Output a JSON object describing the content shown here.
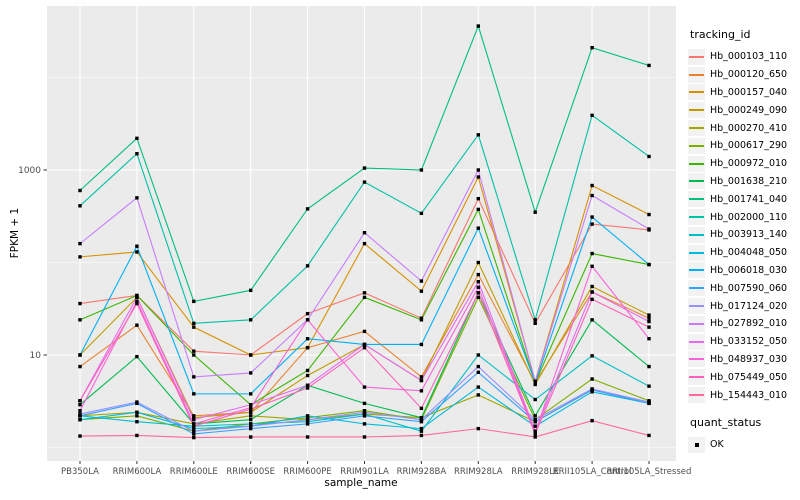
{
  "figure": {
    "background": "#FFFFFF",
    "panel_bg": "#EBEBEB",
    "grid_color": "#FFFFFF",
    "tick_label_color": "#4D4D4D"
  },
  "axes": {
    "y_label": "FPKM + 1",
    "x_label": "sample_name",
    "y_tick_labels": [
      "1000",
      "10"
    ]
  },
  "legend": {
    "tracking_title": "tracking_id",
    "quant_title": "quant_status",
    "quant_ok_label": "OK"
  },
  "chart_data": {
    "type": "line",
    "title": "",
    "xlabel": "sample_name",
    "ylabel": "FPKM + 1",
    "y_scale": "log10",
    "ylim": [
      0.7,
      56000
    ],
    "y_major_ticks": [
      10,
      1000
    ],
    "y_minor_gridlines": [
      1,
      100,
      10000
    ],
    "grid": true,
    "legend_position": "right",
    "marker": "black-square",
    "categories": [
      "PB350LA",
      "RRIM600LA",
      "RRIM600LE",
      "RRIM600SE",
      "RRIM600PE",
      "RRIM901LA",
      "RRIM928BA",
      "RRIM928LA",
      "RRIM928LE",
      "RRII105LA_Control",
      "RRII105LA_Stressed"
    ],
    "series": [
      {
        "name": "Hb_000103_110",
        "color": "#F8766D",
        "values": [
          36,
          44,
          11,
          10,
          28,
          47,
          25,
          490,
          22,
          260,
          225
        ]
      },
      {
        "name": "Hb_000120_650",
        "color": "#EA8331",
        "values": [
          7.5,
          21,
          2.2,
          2.4,
          12,
          18,
          5.8,
          74,
          5.0,
          48,
          25
        ]
      },
      {
        "name": "Hb_000157_040",
        "color": "#D89000",
        "values": [
          115,
          130,
          20,
          10,
          12,
          160,
          49,
          840,
          5.2,
          680,
          330
        ]
      },
      {
        "name": "Hb_000249_090",
        "color": "#C09B00",
        "values": [
          10,
          42,
          2.1,
          2.4,
          6.0,
          13,
          5.3,
          100,
          4.8,
          55,
          27
        ]
      },
      {
        "name": "Hb_000270_410",
        "color": "#A3A500",
        "values": [
          2.2,
          2.4,
          1.8,
          2.2,
          2.0,
          2.3,
          2.1,
          3.7,
          1.9,
          4.2,
          3.1
        ]
      },
      {
        "name": "Hb_000617_290",
        "color": "#7CAE00",
        "values": [
          2.0,
          2.2,
          1.5,
          1.8,
          2.1,
          2.5,
          2.0,
          42,
          2.0,
          5.5,
          3.2
        ]
      },
      {
        "name": "Hb_000972_010",
        "color": "#39B600",
        "values": [
          24,
          44,
          10,
          2.9,
          6.8,
          42,
          24,
          375,
          5.0,
          125,
          95
        ]
      },
      {
        "name": "Hb_001638_210",
        "color": "#00BB4E",
        "values": [
          2.9,
          9.6,
          1.8,
          2.0,
          4.7,
          3.0,
          2.1,
          47,
          2.2,
          24,
          7.5
        ]
      },
      {
        "name": "Hb_001741_040",
        "color": "#00BF7D",
        "values": [
          600,
          2200,
          38,
          50,
          380,
          1050,
          1000,
          36000,
          350,
          21000,
          13500
        ]
      },
      {
        "name": "Hb_002000_110",
        "color": "#00C1A3",
        "values": [
          410,
          1500,
          22,
          24,
          92,
          740,
          340,
          2400,
          24,
          3900,
          1400
        ]
      },
      {
        "name": "Hb_003913_140",
        "color": "#00BFC4",
        "values": [
          2.2,
          1.9,
          1.7,
          1.8,
          1.9,
          2.3,
          1.5,
          10,
          3.3,
          9.8,
          4.6
        ]
      },
      {
        "name": "Hb_004048_050",
        "color": "#00BAE0",
        "values": [
          2.0,
          2.4,
          1.6,
          1.7,
          2.2,
          1.8,
          1.6,
          4.5,
          1.7,
          4.0,
          3.0
        ]
      },
      {
        "name": "Hb_006018_030",
        "color": "#00B0F6",
        "values": [
          10,
          150,
          3.8,
          3.8,
          15,
          13,
          13,
          235,
          5.0,
          310,
          95
        ]
      },
      {
        "name": "Hb_007590_060",
        "color": "#35A2FF",
        "values": [
          2.2,
          3.0,
          1.4,
          1.6,
          1.8,
          2.2,
          1.9,
          6.5,
          1.9,
          4.2,
          3.0
        ]
      },
      {
        "name": "Hb_017124_020",
        "color": "#9590FF",
        "values": [
          2.3,
          3.1,
          1.5,
          1.7,
          2.0,
          2.4,
          2.0,
          7.5,
          2.0,
          4.3,
          3.1
        ]
      },
      {
        "name": "Hb_027892_010",
        "color": "#C77CFF",
        "values": [
          160,
          500,
          5.8,
          6.4,
          24,
          210,
          63,
          1000,
          5.2,
          530,
          230
        ]
      },
      {
        "name": "Hb_033152_050",
        "color": "#E76BF3",
        "values": [
          3.2,
          42,
          2.0,
          2.9,
          4.7,
          13,
          5.3,
          62,
          1.5,
          48,
          23
        ]
      },
      {
        "name": "Hb_048937_030",
        "color": "#FA62DB",
        "values": [
          2.5,
          38,
          1.8,
          2.7,
          24,
          4.5,
          4.1,
          54,
          1.45,
          91,
          15
        ]
      },
      {
        "name": "Hb_075449_050",
        "color": "#FF62BC",
        "values": [
          3.2,
          36,
          1.7,
          2.6,
          4.4,
          12,
          2.65,
          47,
          1.4,
          40,
          20
        ]
      },
      {
        "name": "Hb_154443_010",
        "color": "#FF6A98",
        "values": [
          1.33,
          1.35,
          1.28,
          1.3,
          1.3,
          1.3,
          1.35,
          1.6,
          1.3,
          1.95,
          1.35
        ]
      }
    ]
  }
}
